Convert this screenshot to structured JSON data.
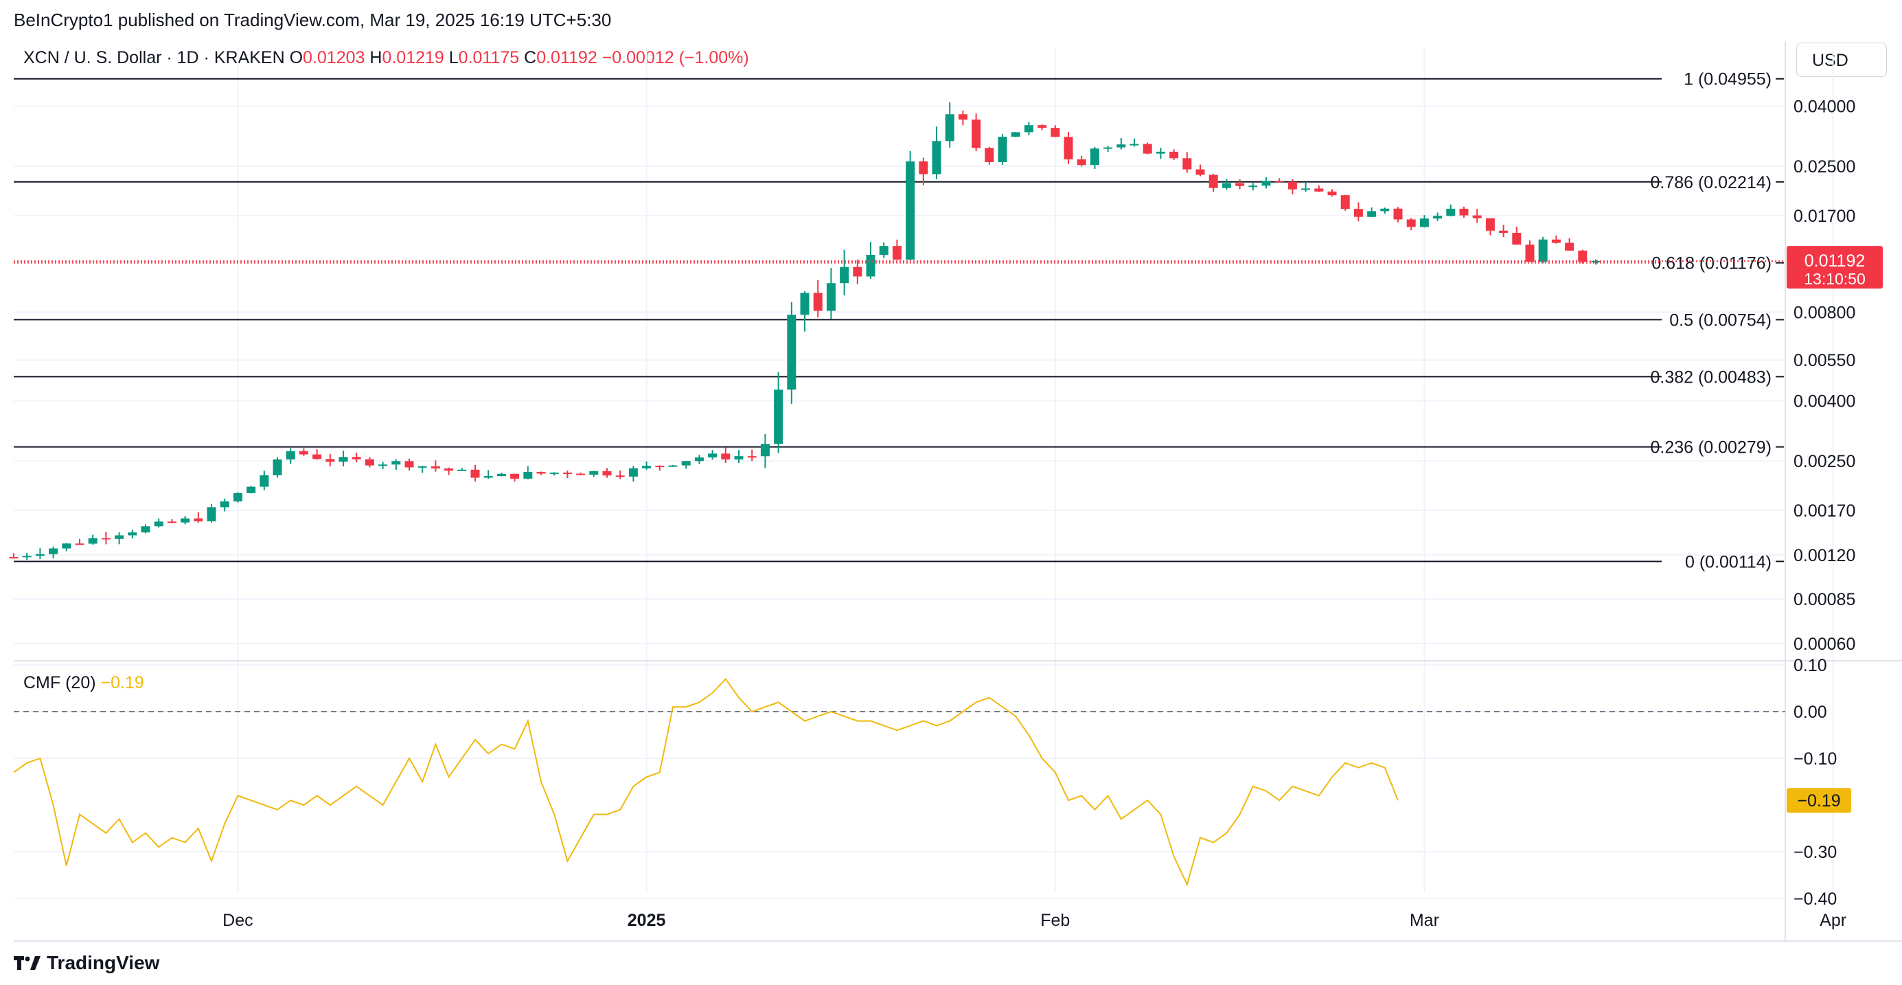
{
  "header": {
    "text": "BeInCrypto1 published on TradingView.com, Mar 19, 2025 16:19 UTC+5:30"
  },
  "legend": {
    "pair": "XCN / U. S. Dollar · 1D · KRAKEN",
    "o_label": "O",
    "o": "0.01203",
    "h_label": "H",
    "h": "0.01219",
    "l_label": "L",
    "l": "0.01175",
    "c_label": "C",
    "c": "0.01192",
    "change": "−0.00012 (−1.00%)"
  },
  "currency_button": "USD",
  "brand": {
    "name": "TradingView",
    "icon": "tradingview-logo-icon"
  },
  "colors": {
    "up": "#089981",
    "down": "#f23645",
    "cmf": "#f0b90b",
    "grid": "#f0f3fa",
    "price_tag": "#f23645",
    "cmf_tag": "#f0b90b"
  },
  "chart_data": [
    {
      "type": "candlestick",
      "title": "XCN / U. S. Dollar · 1D · KRAKEN",
      "y_scale": "log",
      "ylim": [
        0.00053,
        0.063
      ],
      "x_ticks": [
        {
          "label": "Dec",
          "day": 17,
          "bold": false
        },
        {
          "label": "2025",
          "day": 48,
          "bold": true
        },
        {
          "label": "Feb",
          "day": 79,
          "bold": false
        },
        {
          "label": "Mar",
          "day": 107,
          "bold": false
        },
        {
          "label": "Apr",
          "day": 138,
          "bold": false
        }
      ],
      "y_ticks": [
        "0.04000",
        "0.02500",
        "0.01700",
        "0.00800",
        "0.00550",
        "0.00400",
        "0.00250",
        "0.00170",
        "0.00120",
        "0.00085",
        "0.00060"
      ],
      "fib_levels": [
        {
          "ratio": "1",
          "price": 0.04955,
          "label": "1 (0.04955)"
        },
        {
          "ratio": "0.786",
          "price": 0.02214,
          "label": "0.786 (0.02214)"
        },
        {
          "ratio": "0.618",
          "price": 0.01176,
          "label": "0.618 (0.01176)"
        },
        {
          "ratio": "0.5",
          "price": 0.00754,
          "label": "0.5 (0.00754)"
        },
        {
          "ratio": "0.382",
          "price": 0.00483,
          "label": "0.382 (0.00483)"
        },
        {
          "ratio": "0.236",
          "price": 0.00279,
          "label": "0.236 (0.00279)"
        },
        {
          "ratio": "0",
          "price": 0.00114,
          "label": "0 (0.00114)"
        }
      ],
      "last_price": {
        "value": 0.01192,
        "label": "0.01192",
        "countdown": "13:10:50"
      },
      "waypoints": [
        [
          0,
          0.00118
        ],
        [
          8,
          0.00143
        ],
        [
          14,
          0.0016
        ],
        [
          18,
          0.00205
        ],
        [
          21,
          0.0027
        ],
        [
          24,
          0.00252
        ],
        [
          30,
          0.00245
        ],
        [
          36,
          0.0022
        ],
        [
          42,
          0.0023
        ],
        [
          46,
          0.00228
        ],
        [
          52,
          0.00258
        ],
        [
          56,
          0.0026
        ],
        [
          57,
          0.0029
        ],
        [
          58,
          0.00415
        ],
        [
          59,
          0.0072
        ],
        [
          60,
          0.0094
        ],
        [
          61,
          0.008
        ],
        [
          62,
          0.0096
        ],
        [
          63,
          0.0115
        ],
        [
          65,
          0.0115
        ],
        [
          66,
          0.013
        ],
        [
          67,
          0.012
        ],
        [
          68,
          0.024
        ],
        [
          69,
          0.024
        ],
        [
          70,
          0.032
        ],
        [
          71,
          0.035
        ],
        [
          72,
          0.034
        ],
        [
          73,
          0.029
        ],
        [
          74,
          0.0265
        ],
        [
          75,
          0.032
        ],
        [
          77,
          0.034
        ],
        [
          79,
          0.032
        ],
        [
          80,
          0.027
        ],
        [
          81,
          0.026
        ],
        [
          82,
          0.029
        ],
        [
          85,
          0.029
        ],
        [
          88,
          0.027
        ],
        [
          90,
          0.023
        ],
        [
          91,
          0.021
        ],
        [
          94,
          0.022
        ],
        [
          96,
          0.022
        ],
        [
          100,
          0.0195
        ],
        [
          102,
          0.017
        ],
        [
          104,
          0.018
        ],
        [
          106,
          0.0155
        ],
        [
          108,
          0.0175
        ],
        [
          109,
          0.0185
        ],
        [
          111,
          0.0165
        ],
        [
          114,
          0.0135
        ],
        [
          115,
          0.012
        ],
        [
          116,
          0.014
        ],
        [
          118,
          0.0128
        ],
        [
          119,
          0.01203
        ],
        [
          120,
          0.01192
        ]
      ]
    },
    {
      "type": "line",
      "title": "CMF (20)",
      "current_label": "−0.19",
      "current_value": -0.19,
      "ylim": [
        -0.4,
        0.1
      ],
      "y_ticks": [
        {
          "value": 0.1,
          "label": "0.10"
        },
        {
          "value": 0.0,
          "label": "0.00"
        },
        {
          "value": -0.1,
          "label": "−0.10"
        },
        {
          "value": -0.3,
          "label": "−0.30"
        },
        {
          "value": -0.4,
          "label": "−0.40"
        }
      ],
      "zero_line": true,
      "series": [
        {
          "name": "CMF (20)",
          "points": [
            [
              0,
              -0.13
            ],
            [
              1,
              -0.11
            ],
            [
              2,
              -0.1
            ],
            [
              3,
              -0.2
            ],
            [
              4,
              -0.33
            ],
            [
              5,
              -0.22
            ],
            [
              6,
              -0.24
            ],
            [
              7,
              -0.26
            ],
            [
              8,
              -0.23
            ],
            [
              9,
              -0.28
            ],
            [
              10,
              -0.26
            ],
            [
              11,
              -0.29
            ],
            [
              12,
              -0.27
            ],
            [
              13,
              -0.28
            ],
            [
              14,
              -0.25
            ],
            [
              15,
              -0.32
            ],
            [
              16,
              -0.24
            ],
            [
              17,
              -0.18
            ],
            [
              18,
              -0.19
            ],
            [
              19,
              -0.2
            ],
            [
              20,
              -0.21
            ],
            [
              21,
              -0.19
            ],
            [
              22,
              -0.2
            ],
            [
              23,
              -0.18
            ],
            [
              24,
              -0.2
            ],
            [
              25,
              -0.18
            ],
            [
              26,
              -0.16
            ],
            [
              27,
              -0.18
            ],
            [
              28,
              -0.2
            ],
            [
              29,
              -0.15
            ],
            [
              30,
              -0.1
            ],
            [
              31,
              -0.15
            ],
            [
              32,
              -0.07
            ],
            [
              33,
              -0.14
            ],
            [
              34,
              -0.1
            ],
            [
              35,
              -0.06
            ],
            [
              36,
              -0.09
            ],
            [
              37,
              -0.07
            ],
            [
              38,
              -0.08
            ],
            [
              39,
              -0.02
            ],
            [
              40,
              -0.15
            ],
            [
              41,
              -0.22
            ],
            [
              42,
              -0.32
            ],
            [
              43,
              -0.27
            ],
            [
              44,
              -0.22
            ],
            [
              45,
              -0.22
            ],
            [
              46,
              -0.21
            ],
            [
              47,
              -0.16
            ],
            [
              48,
              -0.14
            ],
            [
              49,
              -0.13
            ],
            [
              50,
              0.01
            ],
            [
              51,
              0.01
            ],
            [
              52,
              0.02
            ],
            [
              53,
              0.04
            ],
            [
              54,
              0.07
            ],
            [
              55,
              0.03
            ],
            [
              56,
              0.0
            ],
            [
              57,
              0.01
            ],
            [
              58,
              0.02
            ],
            [
              59,
              0.0
            ],
            [
              60,
              -0.02
            ],
            [
              61,
              -0.01
            ],
            [
              62,
              0.0
            ],
            [
              63,
              -0.01
            ],
            [
              64,
              -0.02
            ],
            [
              65,
              -0.02
            ],
            [
              66,
              -0.03
            ],
            [
              67,
              -0.04
            ],
            [
              68,
              -0.03
            ],
            [
              69,
              -0.02
            ],
            [
              70,
              -0.03
            ],
            [
              71,
              -0.02
            ],
            [
              72,
              0.0
            ],
            [
              73,
              0.02
            ],
            [
              74,
              0.03
            ],
            [
              75,
              0.01
            ],
            [
              76,
              -0.01
            ],
            [
              77,
              -0.05
            ],
            [
              78,
              -0.1
            ],
            [
              79,
              -0.13
            ],
            [
              80,
              -0.19
            ],
            [
              81,
              -0.18
            ],
            [
              82,
              -0.21
            ],
            [
              83,
              -0.18
            ],
            [
              84,
              -0.23
            ],
            [
              85,
              -0.21
            ],
            [
              86,
              -0.19
            ],
            [
              87,
              -0.22
            ],
            [
              88,
              -0.31
            ],
            [
              89,
              -0.37
            ],
            [
              90,
              -0.27
            ],
            [
              91,
              -0.28
            ],
            [
              92,
              -0.26
            ],
            [
              93,
              -0.22
            ],
            [
              94,
              -0.16
            ],
            [
              95,
              -0.17
            ],
            [
              96,
              -0.19
            ],
            [
              97,
              -0.16
            ],
            [
              98,
              -0.17
            ],
            [
              99,
              -0.18
            ],
            [
              100,
              -0.14
            ],
            [
              101,
              -0.11
            ],
            [
              102,
              -0.12
            ],
            [
              103,
              -0.11
            ],
            [
              104,
              -0.12
            ],
            [
              105,
              -0.19
            ]
          ]
        }
      ]
    }
  ]
}
